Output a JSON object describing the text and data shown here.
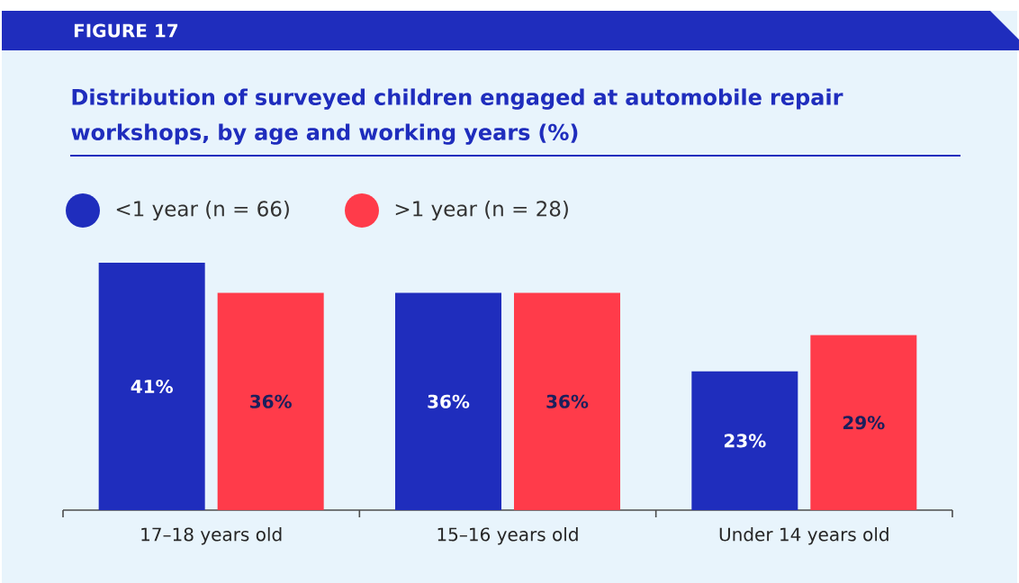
{
  "chart_data": {
    "type": "bar",
    "title": "Distribution of surveyed children engaged at automobile repair workshops, by age and working years (%)",
    "annotations": [
      "FIGURE 17"
    ],
    "categories": [
      "17–18 years old",
      "15–16 years old",
      "Under 14 years old"
    ],
    "series": [
      {
        "name": "<1 year (n = 66)",
        "color": "#1f2dbd",
        "values": [
          41,
          36,
          23
        ],
        "value_labels": [
          "41%",
          "36%",
          "23%"
        ]
      },
      {
        "name": ">1 year (n = 28)",
        "color": "#ff3b4a",
        "values": [
          36,
          36,
          29
        ],
        "value_labels": [
          "36%",
          "36%",
          "29%"
        ]
      }
    ],
    "legend": "top left"
  }
}
